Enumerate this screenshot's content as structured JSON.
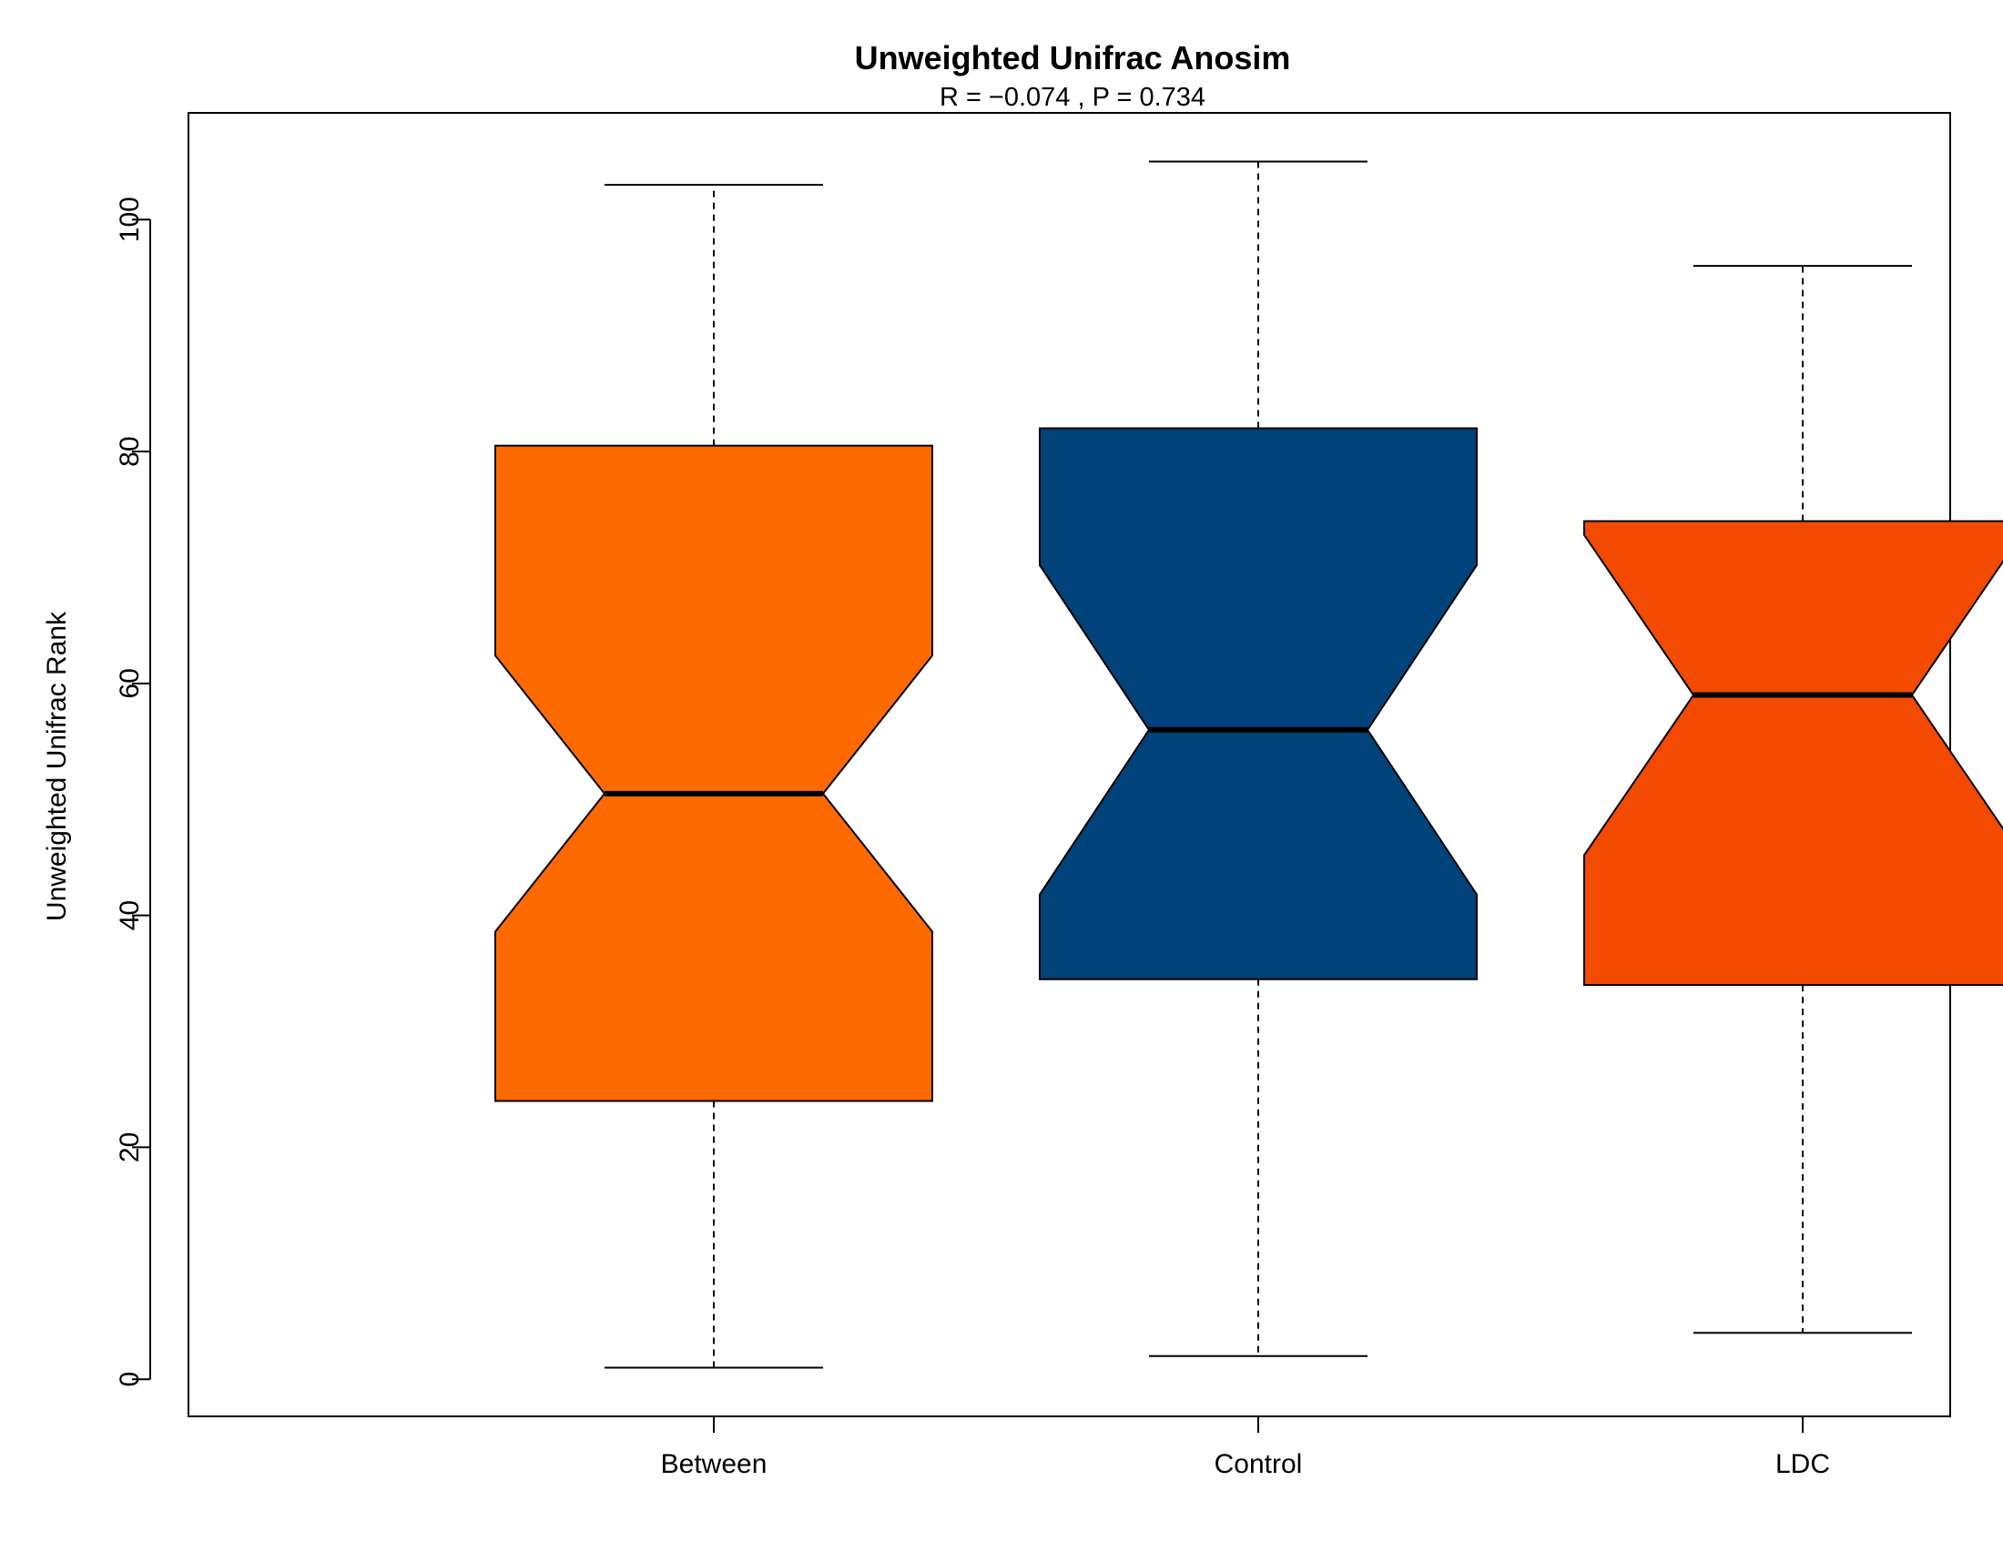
{
  "chart_data": {
    "type": "boxplot",
    "notched": true,
    "title": "Unweighted Unifrac Anosim",
    "subtitle": "R =  −0.074 ,  P =  0.734",
    "xlabel": "",
    "ylabel": "Unweighted Unifrac Rank",
    "ylim": [
      -3.2,
      109.2
    ],
    "yticks": [
      0,
      20,
      40,
      60,
      80,
      100
    ],
    "categories": [
      "Between",
      "Control",
      "LDC"
    ],
    "boxes": [
      {
        "category": "Between",
        "min": 1,
        "q1": 24,
        "median": 50.5,
        "q3": 80.5,
        "max": 103,
        "notch_low": 38.6,
        "notch_high": 62.4,
        "color": "#FF6A00"
      },
      {
        "category": "Control",
        "min": 2,
        "q1": 34.5,
        "median": 56,
        "q3": 82,
        "max": 105,
        "notch_low": 41.8,
        "notch_high": 70.2,
        "color": "#00427A"
      },
      {
        "category": "LDC",
        "min": 4,
        "q1": 34,
        "median": 59,
        "q3": 74,
        "max": 96,
        "notch_low": 45.2,
        "notch_high": 72.8,
        "color": "#F24A00"
      }
    ],
    "grid": false,
    "legend": "none"
  }
}
